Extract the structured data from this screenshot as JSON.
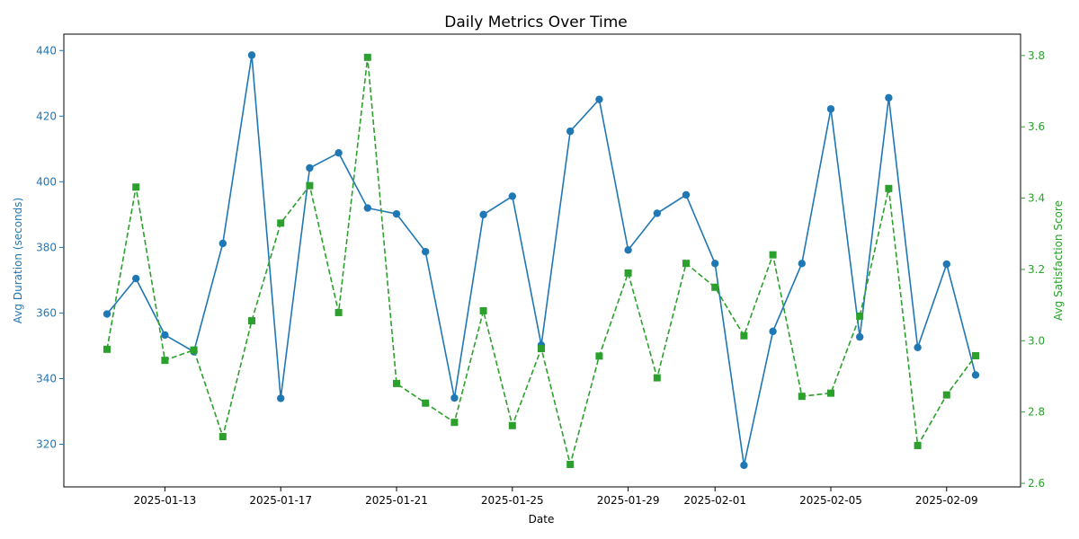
{
  "chart_data": {
    "type": "line",
    "title": "Daily Metrics Over Time",
    "xlabel": "Date",
    "ylabel_left": "Avg Duration (seconds)",
    "ylabel_right": "Avg Satisfaction Score",
    "x_ticks": [
      "2025-01-13",
      "2025-01-17",
      "2025-01-21",
      "2025-01-25",
      "2025-01-29",
      "2025-02-01",
      "2025-02-05",
      "2025-02-09"
    ],
    "y_left_ticks": [
      320,
      340,
      360,
      380,
      400,
      420,
      440
    ],
    "y_right_ticks": [
      "2.6",
      "2.8",
      "3.0",
      "3.2",
      "3.4",
      "3.6",
      "3.8"
    ],
    "ylim_left": [
      307,
      445
    ],
    "ylim_right": [
      2.59,
      3.86
    ],
    "x": [
      "2025-01-11",
      "2025-01-12",
      "2025-01-13",
      "2025-01-14",
      "2025-01-15",
      "2025-01-16",
      "2025-01-17",
      "2025-01-18",
      "2025-01-19",
      "2025-01-20",
      "2025-01-21",
      "2025-01-22",
      "2025-01-23",
      "2025-01-24",
      "2025-01-25",
      "2025-01-26",
      "2025-01-27",
      "2025-01-28",
      "2025-01-29",
      "2025-01-30",
      "2025-01-31",
      "2025-02-01",
      "2025-02-02",
      "2025-02-03",
      "2025-02-04",
      "2025-02-05",
      "2025-02-06",
      "2025-02-07",
      "2025-02-08",
      "2025-02-09",
      "2025-02-10"
    ],
    "series": [
      {
        "axis": "left",
        "color": "#1f77b4",
        "style": "solid",
        "marker": "circle",
        "values": [
          359.7,
          370.5,
          353.3,
          348.2,
          381.2,
          438.6,
          334.0,
          404.2,
          408.8,
          392.0,
          390.2,
          378.7,
          334.1,
          390.0,
          395.6,
          350.2,
          415.4,
          425.1,
          379.2,
          390.4,
          396.0,
          375.1,
          313.6,
          354.4,
          375.1,
          422.2,
          352.7,
          425.6,
          349.5,
          374.9,
          341.1
        ]
      },
      {
        "axis": "right",
        "color": "#2ca02c",
        "style": "dashed",
        "marker": "square",
        "values": [
          2.976,
          3.431,
          2.945,
          2.974,
          2.731,
          3.056,
          3.33,
          3.435,
          3.079,
          3.795,
          2.88,
          2.825,
          2.771,
          3.084,
          2.762,
          2.978,
          2.653,
          2.957,
          3.19,
          2.896,
          3.217,
          3.15,
          3.014,
          3.241,
          2.844,
          2.853,
          3.069,
          3.427,
          2.706,
          2.848,
          2.958
        ]
      }
    ],
    "grid": false,
    "legend": "none"
  }
}
